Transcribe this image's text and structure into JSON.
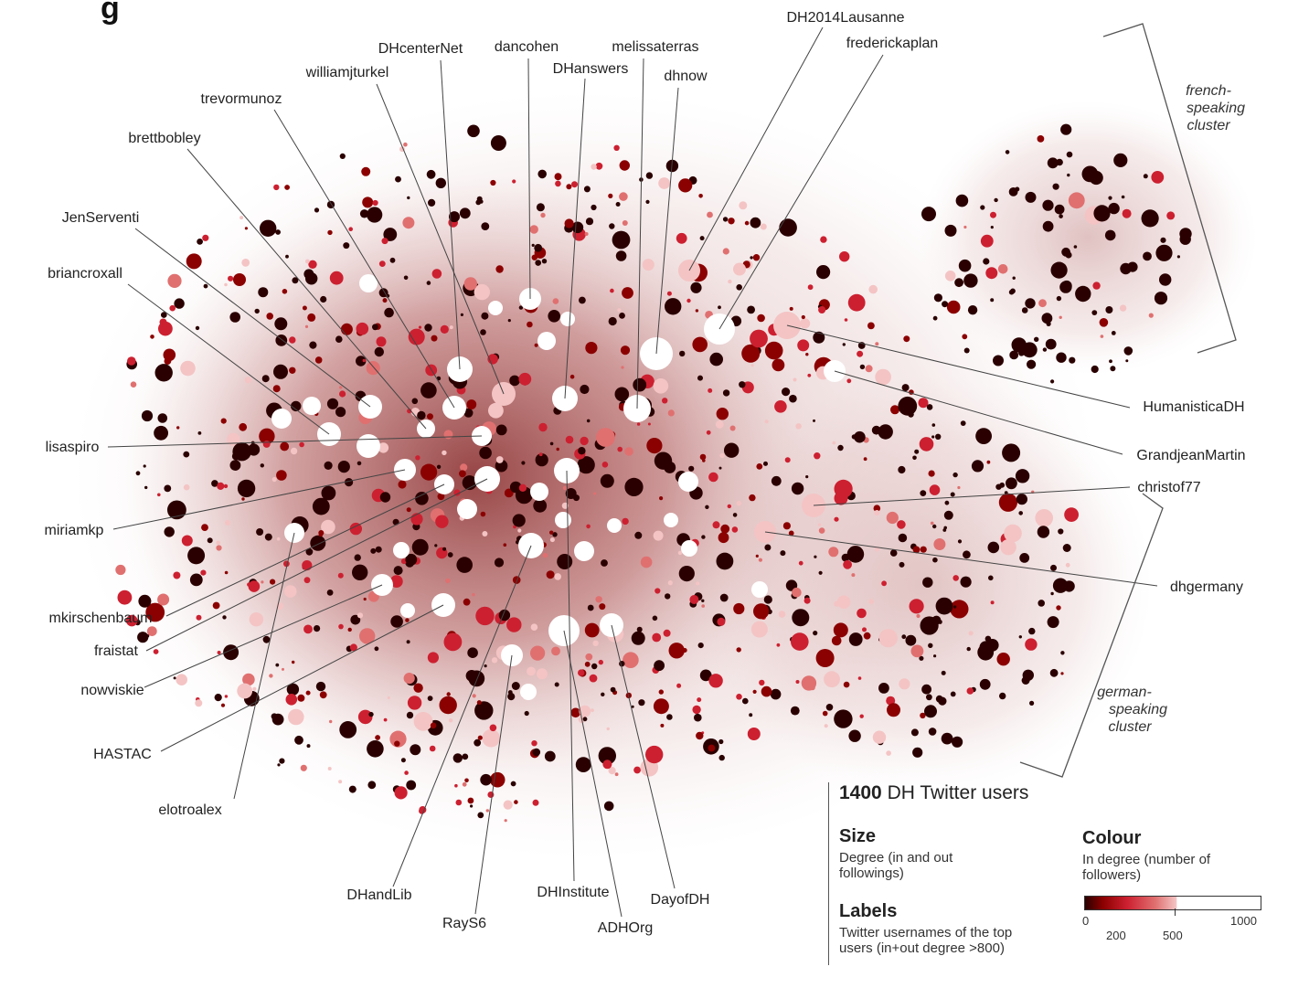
{
  "title_fragment": "g",
  "users": [
    {
      "name": "DH2014Lausanne"
    },
    {
      "name": "frederickaplan"
    },
    {
      "name": "DHcenterNet"
    },
    {
      "name": "dancohen"
    },
    {
      "name": "melissaterras"
    },
    {
      "name": "williamjturkel"
    },
    {
      "name": "DHanswers"
    },
    {
      "name": "dhnow"
    },
    {
      "name": "trevormunoz"
    },
    {
      "name": "brettbobley"
    },
    {
      "name": "JenServenti"
    },
    {
      "name": "briancroxall"
    },
    {
      "name": "lisaspiro"
    },
    {
      "name": "miriamkp"
    },
    {
      "name": "mkirschenbaum"
    },
    {
      "name": "fraistat"
    },
    {
      "name": "nowviskie"
    },
    {
      "name": "HASTAC"
    },
    {
      "name": "elotroalex"
    },
    {
      "name": "DHandLib"
    },
    {
      "name": "RayS6"
    },
    {
      "name": "DHInstitute"
    },
    {
      "name": "ADHOrg"
    },
    {
      "name": "DayofDH"
    },
    {
      "name": "HumanisticaDH"
    },
    {
      "name": "GrandjeanMartin"
    },
    {
      "name": "christof77"
    },
    {
      "name": "dhgermany"
    }
  ],
  "clusters": {
    "french": [
      "french-",
      "speaking",
      "cluster"
    ],
    "german": [
      "german-",
      "speaking",
      "cluster"
    ]
  },
  "legend": {
    "count": "1400",
    "count_text": "DH Twitter users",
    "size_title": "Size",
    "size_desc_1": "Degree (in and out",
    "size_desc_2": "followings)",
    "labels_title": "Labels",
    "labels_desc_1": "Twitter usernames of the top",
    "labels_desc_2": "users (in+out degree >800)",
    "colour_title": "Colour",
    "colour_desc_1": "In degree (number of",
    "colour_desc_2": "followers)",
    "colour_ticks": [
      "0",
      "200",
      "500",
      "1000"
    ]
  },
  "colors": {
    "node_darkest": "#2a0000",
    "node_dark": "#8b0000",
    "node_mid": "#cc2030",
    "node_light": "#e07070",
    "node_pale": "#f4c4c4",
    "node_top": "#ffffff"
  }
}
